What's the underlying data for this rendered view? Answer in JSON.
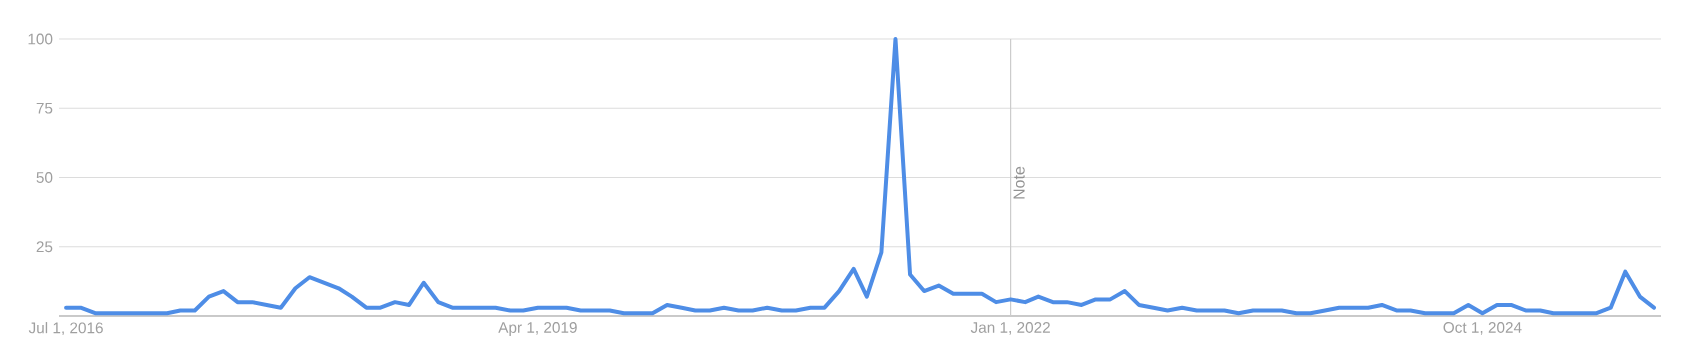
{
  "chart_data": {
    "type": "line",
    "x": [
      "2016-07",
      "2016-08",
      "2016-09",
      "2016-10",
      "2016-11",
      "2016-12",
      "2017-01",
      "2017-02",
      "2017-03",
      "2017-04",
      "2017-05",
      "2017-06",
      "2017-07",
      "2017-08",
      "2017-09",
      "2017-10",
      "2017-11",
      "2017-12",
      "2018-01",
      "2018-02",
      "2018-03",
      "2018-04",
      "2018-05",
      "2018-06",
      "2018-07",
      "2018-08",
      "2018-09",
      "2018-10",
      "2018-11",
      "2018-12",
      "2019-01",
      "2019-02",
      "2019-03",
      "2019-04",
      "2019-05",
      "2019-06",
      "2019-07",
      "2019-08",
      "2019-09",
      "2019-10",
      "2019-11",
      "2019-12",
      "2020-01",
      "2020-02",
      "2020-03",
      "2020-04",
      "2020-05",
      "2020-06",
      "2020-07",
      "2020-08",
      "2020-09",
      "2020-10",
      "2020-11",
      "2020-12",
      "2021-01",
      "2021-02",
      "2021-03",
      "2021-04",
      "2021-05",
      "2021-06",
      "2021-07",
      "2021-08",
      "2021-09",
      "2021-10",
      "2021-11",
      "2021-12",
      "2022-01",
      "2022-02",
      "2022-03",
      "2022-04",
      "2022-05",
      "2022-06",
      "2022-07",
      "2022-08",
      "2022-09",
      "2022-10",
      "2022-11",
      "2022-12",
      "2023-01",
      "2023-02",
      "2023-03",
      "2023-04",
      "2023-05",
      "2023-06",
      "2023-07",
      "2023-08",
      "2023-09",
      "2023-10",
      "2023-11",
      "2023-12",
      "2024-01",
      "2024-02",
      "2024-03",
      "2024-04",
      "2024-05",
      "2024-06",
      "2024-07",
      "2024-08",
      "2024-09",
      "2024-10",
      "2024-11",
      "2024-12",
      "2025-01",
      "2025-02",
      "2025-03",
      "2025-04",
      "2025-05",
      "2025-06",
      "2025-07",
      "2025-08",
      "2025-09",
      "2025-10"
    ],
    "series": [
      {
        "color": "#4e8de6",
        "values": [
          3,
          3,
          1,
          1,
          1,
          1,
          1,
          1,
          2,
          2,
          7,
          9,
          5,
          5,
          4,
          3,
          10,
          14,
          12,
          10,
          7,
          3,
          3,
          5,
          4,
          12,
          5,
          3,
          3,
          3,
          3,
          2,
          2,
          3,
          3,
          3,
          2,
          2,
          2,
          1,
          1,
          1,
          4,
          3,
          2,
          2,
          3,
          2,
          2,
          3,
          2,
          2,
          3,
          3,
          9,
          17,
          7,
          23,
          100,
          15,
          9,
          11,
          8,
          8,
          8,
          5,
          6,
          5,
          7,
          5,
          5,
          4,
          6,
          6,
          9,
          4,
          3,
          2,
          3,
          2,
          2,
          2,
          1,
          2,
          2,
          2,
          1,
          1,
          2,
          3,
          3,
          3,
          4,
          2,
          2,
          1,
          1,
          1,
          4,
          1,
          4,
          4,
          2,
          2,
          1,
          1,
          1,
          1,
          3,
          16,
          7,
          3
        ]
      }
    ],
    "xlim": [
      "2016-06-16",
      "2025-10-16"
    ],
    "xticks": [
      {
        "value": "2016-07-01",
        "label": "Jul 1, 2016"
      },
      {
        "value": "2019-04-01",
        "label": "Apr 1, 2019"
      },
      {
        "value": "2022-01-01",
        "label": "Jan 1, 2022"
      },
      {
        "value": "2024-10-01",
        "label": "Oct 1, 2024"
      }
    ],
    "ylim": [
      0,
      100
    ],
    "yticks": [
      {
        "value": 0,
        "label": null
      },
      25,
      50,
      75,
      100
    ],
    "grid": "y",
    "marker": "none",
    "line_style": "solid",
    "ref_lines": [
      {
        "axis": "x",
        "value": "2022-01-01",
        "label": "Note",
        "color": "#cccccc"
      }
    ]
  }
}
